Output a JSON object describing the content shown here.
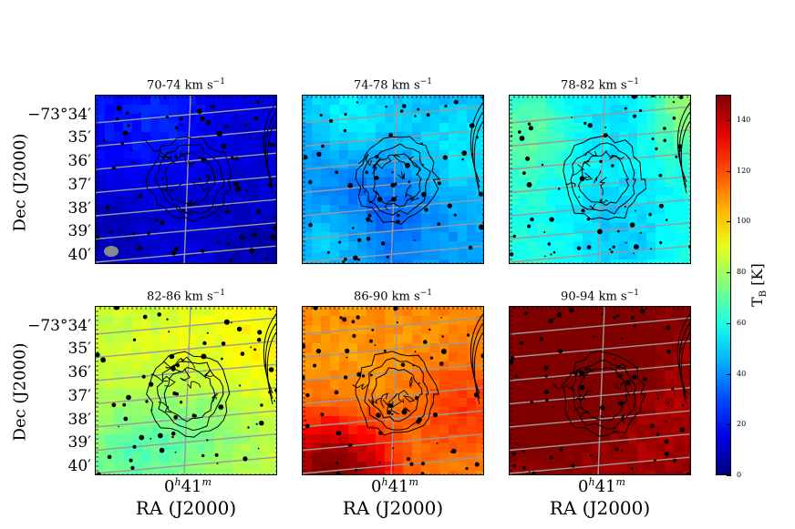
{
  "chart_data": {
    "type": "heatmap",
    "panels": [
      {
        "title": "70-74 km s",
        "unit_sup": "−1",
        "base_level": 22
      },
      {
        "title": "74-78 km s",
        "unit_sup": "−1",
        "base_level": 42
      },
      {
        "title": "78-82 km s",
        "unit_sup": "−1",
        "base_level": 62
      },
      {
        "title": "82-86 km s",
        "unit_sup": "−1",
        "base_level": 85
      },
      {
        "title": "86-90 km s",
        "unit_sup": "−1",
        "base_level": 112
      },
      {
        "title": "90-94 km s",
        "unit_sup": "−1",
        "base_level": 148
      }
    ],
    "ytick_labels": [
      "−73°34′",
      "35′",
      "36′",
      "37′",
      "38′",
      "39′",
      "40′"
    ],
    "ylabel": "Dec (J2000)",
    "xtick_label": "0",
    "xtick_sup_h": "h",
    "xtick_mid": "41",
    "xtick_sup_m": "m",
    "xlabel": "RA (J2000)",
    "colorbar": {
      "label": "T",
      "label_sub": "B",
      "label_unit": "[K]",
      "vmin": 0,
      "vmax": 150,
      "ticks": [
        "0",
        "20",
        "40",
        "60",
        "80",
        "100",
        "120",
        "140"
      ],
      "colormap": "jet"
    }
  }
}
